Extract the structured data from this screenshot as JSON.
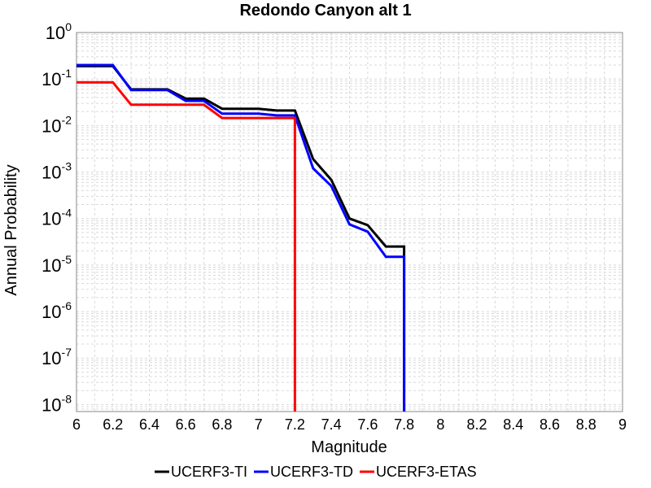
{
  "chart_data": {
    "type": "line",
    "title": "Redondo Canyon alt 1",
    "xlabel": "Magnitude",
    "ylabel": "Annual Probability",
    "xlim": [
      6,
      9
    ],
    "ylim_log10": [
      -8.15,
      0
    ],
    "y_scale": "log",
    "grid": true,
    "legend_position": "bottom",
    "x_ticks": [
      "6",
      "6.2",
      "6.4",
      "6.6",
      "6.8",
      "7",
      "7.2",
      "7.4",
      "7.6",
      "7.8",
      "8",
      "8.2",
      "8.4",
      "8.6",
      "8.8",
      "9"
    ],
    "y_ticks": [
      {
        "base": "10",
        "exp": "0",
        "value": 1
      },
      {
        "base": "10",
        "exp": "-1",
        "value": 0.1
      },
      {
        "base": "10",
        "exp": "-2",
        "value": 0.01
      },
      {
        "base": "10",
        "exp": "-3",
        "value": 0.001
      },
      {
        "base": "10",
        "exp": "-4",
        "value": 0.0001
      },
      {
        "base": "10",
        "exp": "-5",
        "value": 1e-05
      },
      {
        "base": "10",
        "exp": "-6",
        "value": 1e-06
      },
      {
        "base": "10",
        "exp": "-7",
        "value": 1e-07
      },
      {
        "base": "10",
        "exp": "-8",
        "value": 1e-08
      }
    ],
    "series": [
      {
        "name": "UCERF3-TI",
        "color": "#000000",
        "x": [
          6.0,
          6.2,
          6.3,
          6.5,
          6.6,
          6.7,
          6.8,
          7.0,
          7.1,
          7.2,
          7.3,
          7.4,
          7.5,
          7.6,
          7.7,
          7.8,
          7.8
        ],
        "y": [
          0.19,
          0.19,
          0.06,
          0.06,
          0.038,
          0.038,
          0.023,
          0.023,
          0.021,
          0.021,
          0.0019,
          0.00068,
          0.0001,
          7.2e-05,
          2.5e-05,
          2.5e-05,
          1e-10
        ]
      },
      {
        "name": "UCERF3-TD",
        "color": "#0000ff",
        "x": [
          6.0,
          6.2,
          6.3,
          6.5,
          6.6,
          6.7,
          6.8,
          7.0,
          7.1,
          7.2,
          7.3,
          7.4,
          7.5,
          7.6,
          7.7,
          7.8,
          7.8
        ],
        "y": [
          0.2,
          0.2,
          0.058,
          0.058,
          0.034,
          0.034,
          0.018,
          0.018,
          0.0165,
          0.0165,
          0.0012,
          0.0005,
          7.5e-05,
          5.2e-05,
          1.5e-05,
          1.5e-05,
          1e-10
        ]
      },
      {
        "name": "UCERF3-ETAS",
        "color": "#ff0000",
        "x": [
          6.0,
          6.2,
          6.3,
          6.5,
          6.6,
          6.7,
          6.8,
          7.0,
          7.1,
          7.2,
          7.2
        ],
        "y": [
          0.085,
          0.085,
          0.028,
          0.028,
          0.028,
          0.028,
          0.0145,
          0.0145,
          0.0145,
          0.0145,
          1e-10
        ]
      }
    ]
  }
}
